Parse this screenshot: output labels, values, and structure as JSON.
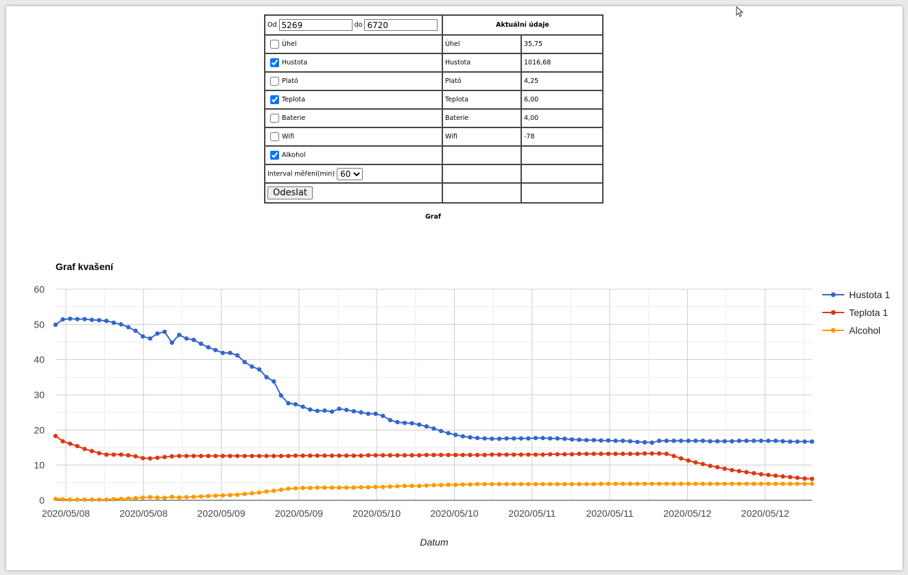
{
  "form": {
    "od_label": "Od",
    "od_value": "5269",
    "do_label": "do",
    "do_value": "6720",
    "checkboxes": [
      {
        "label": "Úhel",
        "checked": false
      },
      {
        "label": "Hustota",
        "checked": true
      },
      {
        "label": "Plató",
        "checked": false
      },
      {
        "label": "Teplota",
        "checked": true
      },
      {
        "label": "Baterie",
        "checked": false
      },
      {
        "label": "Wifi",
        "checked": false
      },
      {
        "label": "Alkohol",
        "checked": true
      }
    ],
    "interval_label": "Interval měření(min)",
    "interval_value": "60",
    "submit_label": "Odeslat"
  },
  "current": {
    "header": "Aktuální údaje",
    "rows": [
      {
        "name": "Úhel",
        "value": "35,75"
      },
      {
        "name": "Hustota",
        "value": "1016,68"
      },
      {
        "name": "Plató",
        "value": "4,25"
      },
      {
        "name": "Teplota",
        "value": "6,00"
      },
      {
        "name": "Baterie",
        "value": "4,00"
      },
      {
        "name": "Wifi",
        "value": "-78"
      }
    ]
  },
  "graf_label": "Graf",
  "chart_data": {
    "type": "line",
    "title": "Graf kvašení",
    "xlabel": "Datum",
    "ylabel": "",
    "ylim": [
      0,
      60
    ],
    "yticks": [
      0,
      10,
      20,
      30,
      40,
      50,
      60
    ],
    "x_tick_labels": [
      "2020/05/08",
      "2020/05/08",
      "2020/05/09",
      "2020/05/09",
      "2020/05/10",
      "2020/05/10",
      "2020/05/11",
      "2020/05/11",
      "2020/05/12",
      "2020/05/12"
    ],
    "legend_position": "right",
    "grid": true,
    "series": [
      {
        "name": "Hustota 1",
        "color": "#3366cc",
        "values": [
          49.9,
          51.4,
          51.6,
          51.5,
          51.5,
          51.3,
          51.2,
          51.0,
          50.5,
          50.0,
          49.2,
          48.2,
          46.6,
          46.0,
          47.4,
          47.9,
          44.8,
          47.0,
          46.0,
          45.6,
          44.5,
          43.5,
          42.7,
          41.9,
          41.9,
          41.2,
          39.3,
          38.0,
          37.2,
          35.0,
          33.8,
          29.8,
          27.6,
          27.3,
          26.6,
          25.8,
          25.4,
          25.5,
          25.2,
          26.0,
          25.7,
          25.3,
          25.0,
          24.6,
          24.6,
          24.0,
          22.8,
          22.2,
          22.0,
          21.9,
          21.5,
          21.0,
          20.4,
          19.7,
          19.1,
          18.6,
          18.2,
          17.9,
          17.7,
          17.6,
          17.5,
          17.5,
          17.6,
          17.6,
          17.6,
          17.6,
          17.7,
          17.7,
          17.6,
          17.6,
          17.5,
          17.3,
          17.2,
          17.1,
          17.1,
          17.0,
          17.0,
          16.9,
          16.9,
          16.8,
          16.6,
          16.5,
          16.4,
          16.9,
          16.9,
          16.9,
          16.9,
          16.9,
          16.9,
          16.9,
          16.8,
          16.8,
          16.8,
          16.8,
          16.9,
          16.9,
          16.9,
          16.9,
          16.9,
          16.9,
          16.8,
          16.7,
          16.7,
          16.7,
          16.7
        ]
      },
      {
        "name": "Teplota 1",
        "color": "#dc3912",
        "values": [
          18.3,
          16.8,
          16.1,
          15.4,
          14.6,
          14.0,
          13.4,
          13.0,
          13.0,
          13.0,
          12.8,
          12.5,
          12.0,
          11.9,
          12.1,
          12.3,
          12.5,
          12.6,
          12.6,
          12.6,
          12.6,
          12.6,
          12.6,
          12.6,
          12.6,
          12.6,
          12.6,
          12.6,
          12.6,
          12.6,
          12.6,
          12.6,
          12.6,
          12.7,
          12.7,
          12.7,
          12.7,
          12.7,
          12.7,
          12.7,
          12.7,
          12.7,
          12.7,
          12.8,
          12.8,
          12.8,
          12.8,
          12.8,
          12.8,
          12.8,
          12.8,
          12.9,
          12.9,
          12.9,
          12.9,
          12.9,
          12.9,
          12.9,
          12.9,
          12.9,
          13.0,
          13.0,
          13.0,
          13.0,
          13.0,
          13.0,
          13.0,
          13.0,
          13.1,
          13.1,
          13.1,
          13.1,
          13.2,
          13.2,
          13.2,
          13.2,
          13.2,
          13.2,
          13.2,
          13.2,
          13.2,
          13.3,
          13.3,
          13.3,
          13.2,
          12.6,
          11.9,
          11.3,
          10.8,
          10.3,
          9.8,
          9.4,
          9.0,
          8.6,
          8.3,
          8.0,
          7.7,
          7.4,
          7.2,
          7.0,
          6.8,
          6.6,
          6.4,
          6.2,
          6.1
        ]
      },
      {
        "name": "Alcohol",
        "color": "#ff9900",
        "values": [
          0.4,
          0.3,
          0.2,
          0.2,
          0.2,
          0.2,
          0.2,
          0.2,
          0.3,
          0.4,
          0.5,
          0.6,
          0.8,
          0.9,
          0.8,
          0.7,
          1.0,
          0.8,
          0.9,
          1.0,
          1.1,
          1.2,
          1.3,
          1.4,
          1.5,
          1.6,
          1.8,
          2.0,
          2.2,
          2.5,
          2.7,
          3.0,
          3.3,
          3.4,
          3.5,
          3.5,
          3.6,
          3.6,
          3.6,
          3.6,
          3.6,
          3.6,
          3.7,
          3.7,
          3.8,
          3.8,
          3.9,
          4.0,
          4.1,
          4.1,
          4.1,
          4.2,
          4.3,
          4.3,
          4.4,
          4.4,
          4.5,
          4.5,
          4.6,
          4.6,
          4.6,
          4.6,
          4.6,
          4.6,
          4.6,
          4.6,
          4.6,
          4.6,
          4.6,
          4.6,
          4.6,
          4.6,
          4.6,
          4.6,
          4.6,
          4.7,
          4.7,
          4.7,
          4.7,
          4.7,
          4.7,
          4.7,
          4.7,
          4.7,
          4.7,
          4.7,
          4.7,
          4.7,
          4.7,
          4.7,
          4.7,
          4.7,
          4.7,
          4.7,
          4.7,
          4.7,
          4.7,
          4.7,
          4.7,
          4.7,
          4.7,
          4.7,
          4.7,
          4.7,
          4.7
        ]
      }
    ]
  }
}
